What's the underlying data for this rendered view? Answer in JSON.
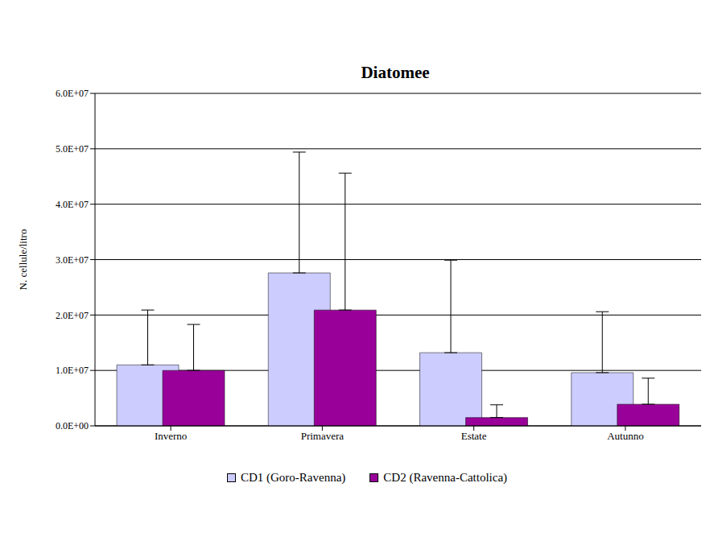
{
  "chart_data": {
    "type": "bar",
    "title": "Diatomee",
    "y_label": "N. cellule/litro",
    "categories": [
      "Inverno",
      "Primavera",
      "Estate",
      "Autunno"
    ],
    "series": [
      {
        "name": "CD1 (Goro-Ravenna)",
        "color": "#ccccff",
        "values": [
          11000000,
          27600000,
          13200000,
          9600000
        ],
        "errors": [
          9900000,
          21800000,
          16700000,
          11000000
        ]
      },
      {
        "name": "CD2 (Ravenna-Cattolica)",
        "color": "#990099",
        "values": [
          10000000,
          20900000,
          1500000,
          3900000
        ],
        "errors": [
          8300000,
          24700000,
          2300000,
          4700000
        ]
      }
    ],
    "ylim": [
      0,
      60000000
    ],
    "yticks": [
      {
        "value": 0,
        "label": "0.0E+00"
      },
      {
        "value": 10000000,
        "label": "1.0E+07"
      },
      {
        "value": 20000000,
        "label": "2.0E+07"
      },
      {
        "value": 30000000,
        "label": "3.0E+07"
      },
      {
        "value": 40000000,
        "label": "4.0E+07"
      },
      {
        "value": 50000000,
        "label": "5.0E+07"
      },
      {
        "value": 60000000,
        "label": "6.0E+07"
      }
    ],
    "grid": true,
    "legend": "bottom"
  }
}
